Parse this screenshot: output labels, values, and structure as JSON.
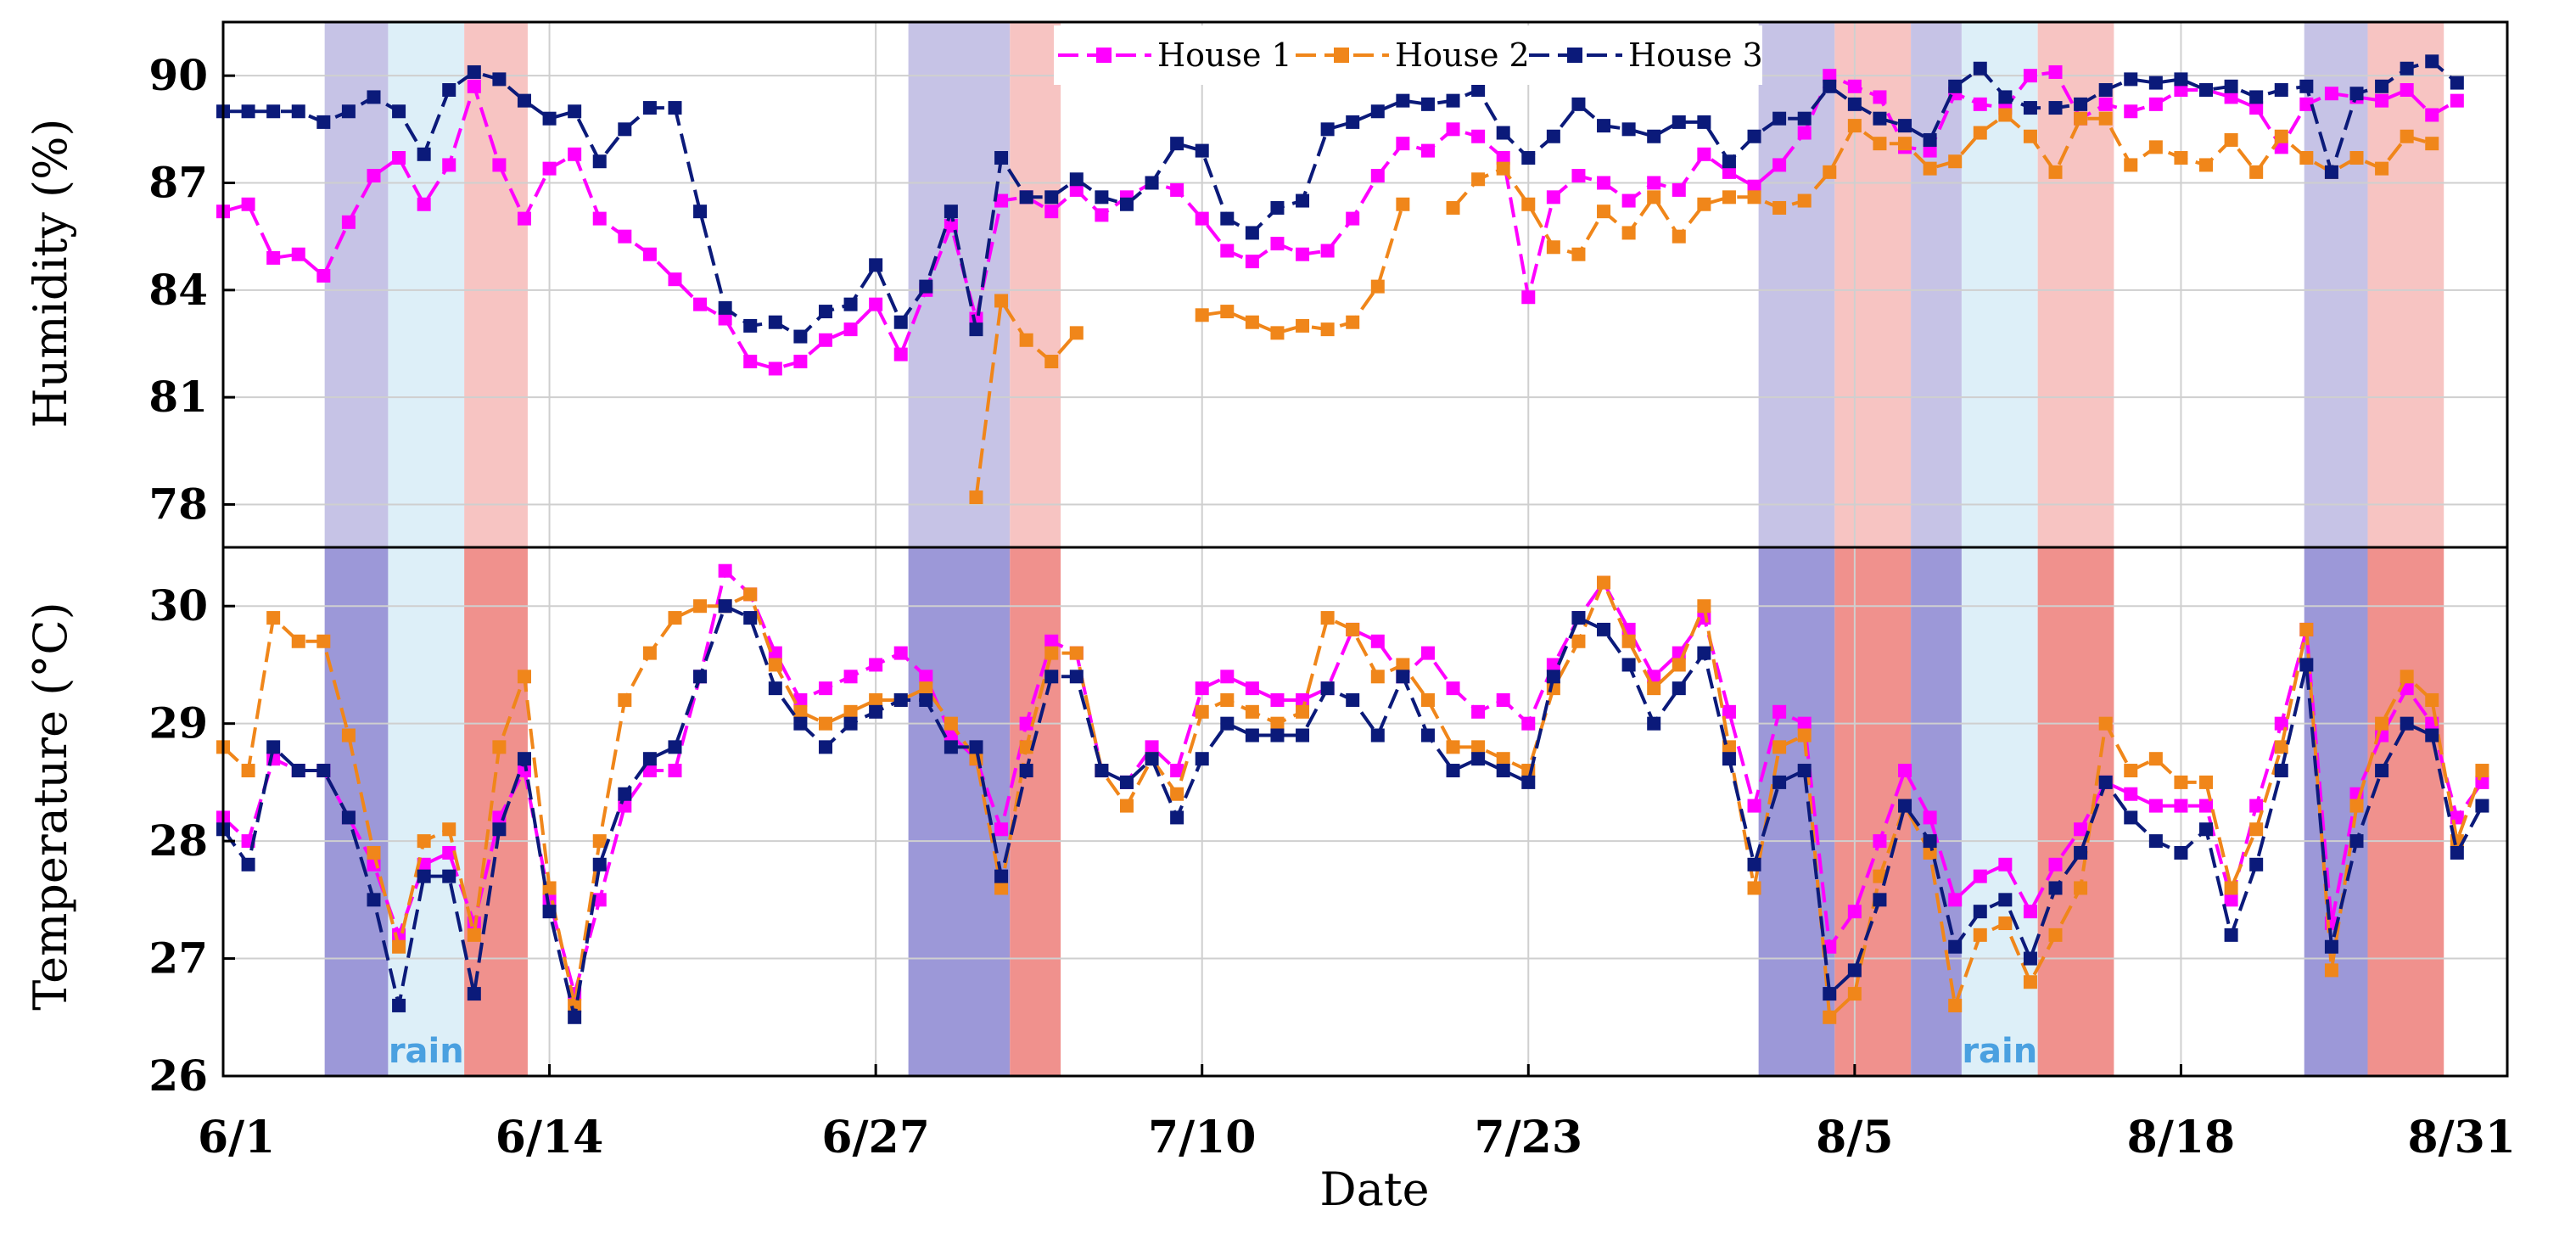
{
  "chart_data": {
    "type": "line",
    "xlabel": "Date",
    "x_start_day": 1,
    "x_range_days": [
      1,
      92
    ],
    "x_ticks": [
      {
        "label": "6/1",
        "day": 1
      },
      {
        "label": "6/14",
        "day": 14
      },
      {
        "label": "6/27",
        "day": 27
      },
      {
        "label": "7/10",
        "day": 40
      },
      {
        "label": "7/23",
        "day": 53
      },
      {
        "label": "8/5",
        "day": 66
      },
      {
        "label": "8/18",
        "day": 79
      },
      {
        "label": "8/31",
        "day": 92
      }
    ],
    "shaded_periods": [
      {
        "start": 8,
        "end": 13,
        "kind": "purple"
      },
      {
        "start": 13,
        "end": 19,
        "kind": "blue",
        "label": "rain"
      },
      {
        "start": 19,
        "end": 24,
        "kind": "red"
      },
      {
        "start": 54,
        "end": 62,
        "kind": "purple"
      },
      {
        "start": 62,
        "end": 66,
        "kind": "red"
      },
      {
        "start": 121,
        "end": 127,
        "kind": "purple"
      },
      {
        "start": 127,
        "end": 133,
        "kind": "red"
      },
      {
        "start": 133,
        "end": 137,
        "kind": "purple"
      },
      {
        "start": 137,
        "end": 143,
        "kind": "blue",
        "label": "rain"
      },
      {
        "start": 143,
        "end": 149,
        "kind": "red"
      },
      {
        "start": 164,
        "end": 169,
        "kind": "purple"
      },
      {
        "start": 169,
        "end": 175,
        "kind": "red"
      }
    ],
    "colors": {
      "house1": "#ff00ff",
      "house2": "#f0861a",
      "house3": "#0b1a7a",
      "purple_top": "#c6c3e6",
      "purple_bottom": "#9c98d8",
      "blue": "#ddeff8",
      "red_top": "#f7c4c2",
      "red_bottom": "#f0918d"
    },
    "legend": [
      "House 1",
      "House 2",
      "House 3"
    ],
    "panels": [
      {
        "name": "humidity",
        "ylabel": "Humidity (%)",
        "ylim": [
          76.8,
          91.5
        ],
        "yticks": [
          78,
          81,
          84,
          87,
          90
        ],
        "series": [
          {
            "name": "House 1",
            "values": [
              86.2,
              86.4,
              84.9,
              85.0,
              84.4,
              85.9,
              87.2,
              87.7,
              86.4,
              87.5,
              89.7,
              87.5,
              86.0,
              87.4,
              87.8,
              86.0,
              85.5,
              85.0,
              84.3,
              83.6,
              83.2,
              82.0,
              81.8,
              82.0,
              82.6,
              82.9,
              83.6,
              82.2,
              84.0,
              85.8,
              83.2,
              86.5,
              86.6,
              86.2,
              86.8,
              86.1,
              86.6,
              87.0,
              86.8,
              86.0,
              85.1,
              84.8,
              85.3,
              85.0,
              85.1,
              86.0,
              87.2,
              88.1,
              87.9,
              88.5,
              88.3,
              87.7,
              83.8,
              86.6,
              87.2,
              87.0,
              86.5,
              87.0,
              86.8,
              87.8,
              87.3,
              86.9,
              87.5,
              88.4,
              90.0,
              89.7,
              89.4,
              88.0,
              87.9,
              89.5,
              89.2,
              89.1,
              90.0,
              90.1,
              88.8,
              89.2,
              89.0,
              89.2,
              89.6,
              89.6,
              89.4,
              89.1,
              88.0,
              89.2,
              89.5,
              89.4,
              89.3,
              89.6,
              88.9,
              89.3
            ]
          },
          {
            "name": "House 2",
            "values": [
              null,
              null,
              null,
              null,
              null,
              null,
              null,
              null,
              null,
              null,
              null,
              null,
              null,
              null,
              null,
              null,
              null,
              null,
              null,
              null,
              null,
              null,
              null,
              null,
              null,
              null,
              null,
              null,
              null,
              null,
              78.2,
              83.7,
              82.6,
              82.0,
              82.8,
              null,
              null,
              null,
              null,
              83.3,
              83.4,
              83.1,
              82.8,
              83.0,
              82.9,
              83.1,
              84.1,
              86.4,
              null,
              86.3,
              87.1,
              87.4,
              86.4,
              85.2,
              85.0,
              86.2,
              85.6,
              86.6,
              85.5,
              86.4,
              86.6,
              86.6,
              86.3,
              86.5,
              87.3,
              88.6,
              88.1,
              88.1,
              87.4,
              87.6,
              88.4,
              88.9,
              88.3,
              87.3,
              88.8,
              88.8,
              87.5,
              88.0,
              87.7,
              87.5,
              88.2,
              87.3,
              88.3,
              87.7,
              87.3,
              87.7,
              87.4,
              88.3,
              88.1,
              null
            ]
          },
          {
            "name": "House 3",
            "values": [
              89.0,
              89.0,
              89.0,
              89.0,
              88.7,
              89.0,
              89.4,
              89.0,
              87.8,
              89.6,
              90.1,
              89.9,
              89.3,
              88.8,
              89.0,
              87.6,
              88.5,
              89.1,
              89.1,
              86.2,
              83.5,
              83.0,
              83.1,
              82.7,
              83.4,
              83.6,
              84.7,
              83.1,
              84.1,
              86.2,
              82.9,
              87.7,
              86.6,
              86.6,
              87.1,
              86.6,
              86.4,
              87.0,
              88.1,
              87.9,
              86.0,
              85.6,
              86.3,
              86.5,
              88.5,
              88.7,
              89.0,
              89.3,
              89.2,
              89.3,
              89.6,
              88.4,
              87.7,
              88.3,
              89.2,
              88.6,
              88.5,
              88.3,
              88.7,
              88.7,
              87.6,
              88.3,
              88.8,
              88.8,
              89.7,
              89.2,
              88.8,
              88.6,
              88.2,
              89.7,
              90.2,
              89.4,
              89.1,
              89.1,
              89.2,
              89.6,
              89.9,
              89.8,
              89.9,
              89.6,
              89.7,
              89.4,
              89.6,
              89.7,
              87.3,
              89.5,
              89.7,
              90.2,
              90.4,
              89.8
            ]
          }
        ]
      },
      {
        "name": "temperature",
        "ylabel": "Temperature (°C)",
        "ylim": [
          26,
          30.5
        ],
        "yticks": [
          26,
          27,
          28,
          29,
          30
        ],
        "series": [
          {
            "name": "House 1",
            "values": [
              28.2,
              28.0,
              28.7,
              28.6,
              28.6,
              28.2,
              27.8,
              27.2,
              27.8,
              27.9,
              27.3,
              28.2,
              28.6,
              27.5,
              26.7,
              27.5,
              28.3,
              28.6,
              28.6,
              29.4,
              30.3,
              30.1,
              29.6,
              29.2,
              29.3,
              29.4,
              29.5,
              29.6,
              29.4,
              28.9,
              28.7,
              28.1,
              29.0,
              29.7,
              29.6,
              28.6,
              28.5,
              28.8,
              28.6,
              29.3,
              29.4,
              29.3,
              29.2,
              29.2,
              29.3,
              29.8,
              29.7,
              29.4,
              29.6,
              29.3,
              29.1,
              29.2,
              29.0,
              29.5,
              29.9,
              30.2,
              29.8,
              29.4,
              29.6,
              29.9,
              29.1,
              28.3,
              29.1,
              29.0,
              27.1,
              27.4,
              28.0,
              28.6,
              28.2,
              27.5,
              27.7,
              27.8,
              27.4,
              27.8,
              28.1,
              28.5,
              28.4,
              28.3,
              28.3,
              28.3,
              27.5,
              28.3,
              29.0,
              29.8,
              27.3,
              28.4,
              28.9,
              29.3,
              29.0,
              28.2,
              28.5
            ]
          },
          {
            "name": "House 2",
            "values": [
              28.8,
              28.6,
              29.9,
              29.7,
              29.7,
              28.9,
              27.9,
              27.1,
              28.0,
              28.1,
              27.2,
              28.8,
              29.4,
              27.6,
              26.6,
              28.0,
              29.2,
              29.6,
              29.9,
              30.0,
              30.0,
              30.1,
              29.5,
              29.1,
              29.0,
              29.1,
              29.2,
              29.2,
              29.3,
              29.0,
              28.7,
              27.6,
              28.8,
              29.6,
              29.6,
              28.6,
              28.3,
              28.7,
              28.4,
              29.1,
              29.2,
              29.1,
              29.0,
              29.1,
              29.9,
              29.8,
              29.4,
              29.5,
              29.2,
              28.8,
              28.8,
              28.7,
              28.6,
              29.3,
              29.7,
              30.2,
              29.7,
              29.3,
              29.5,
              30.0,
              28.8,
              27.6,
              28.8,
              28.9,
              26.5,
              26.7,
              27.7,
              28.3,
              27.9,
              26.6,
              27.2,
              27.3,
              26.8,
              27.2,
              27.6,
              29.0,
              28.6,
              28.7,
              28.5,
              28.5,
              27.6,
              28.1,
              28.8,
              29.8,
              26.9,
              28.3,
              29.0,
              29.4,
              29.2,
              28.0,
              28.6
            ]
          },
          {
            "name": "House 3",
            "values": [
              28.1,
              27.8,
              28.8,
              28.6,
              28.6,
              28.2,
              27.5,
              26.6,
              27.7,
              27.7,
              26.7,
              28.1,
              28.7,
              27.4,
              26.5,
              27.8,
              28.4,
              28.7,
              28.8,
              29.4,
              30.0,
              29.9,
              29.3,
              29.0,
              28.8,
              29.0,
              29.1,
              29.2,
              29.2,
              28.8,
              28.8,
              27.7,
              28.6,
              29.4,
              29.4,
              28.6,
              28.5,
              28.7,
              28.2,
              28.7,
              29.0,
              28.9,
              28.9,
              28.9,
              29.3,
              29.2,
              28.9,
              29.4,
              28.9,
              28.6,
              28.7,
              28.6,
              28.5,
              29.4,
              29.9,
              29.8,
              29.5,
              29.0,
              29.3,
              29.6,
              28.7,
              27.8,
              28.5,
              28.6,
              26.7,
              26.9,
              27.5,
              28.3,
              28.0,
              27.1,
              27.4,
              27.5,
              27.0,
              27.6,
              27.9,
              28.5,
              28.2,
              28.0,
              27.9,
              28.1,
              27.2,
              27.8,
              28.6,
              29.5,
              27.1,
              28.0,
              28.6,
              29.0,
              28.9,
              27.9,
              28.3
            ]
          }
        ]
      }
    ]
  }
}
